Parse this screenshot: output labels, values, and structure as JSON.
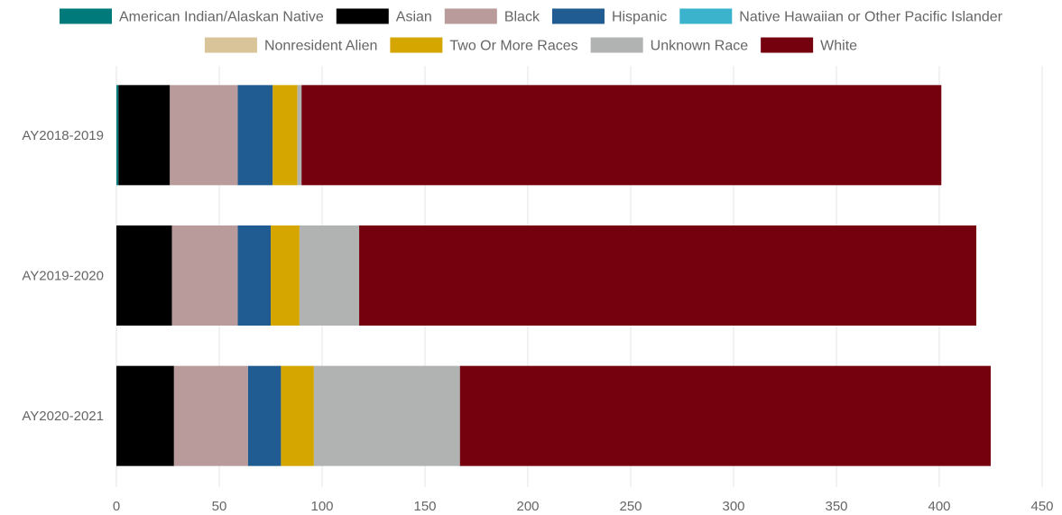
{
  "chart_data": {
    "type": "bar",
    "orientation": "horizontal",
    "stacked": true,
    "categories": [
      "AY2018-2019",
      "AY2019-2020",
      "AY2020-2021"
    ],
    "series": [
      {
        "name": "American Indian/Alaskan Native",
        "color": "#007a7a",
        "values": [
          1,
          0,
          0
        ]
      },
      {
        "name": "Asian",
        "color": "#000000",
        "values": [
          25,
          27,
          28
        ]
      },
      {
        "name": "Black",
        "color": "#b99b9b",
        "values": [
          33,
          32,
          36
        ]
      },
      {
        "name": "Hispanic",
        "color": "#205b91",
        "values": [
          17,
          16,
          16
        ]
      },
      {
        "name": "Native Hawaiian or Other Pacific Islander",
        "color": "#3bb3cc",
        "values": [
          0,
          0,
          0
        ]
      },
      {
        "name": "Nonresident Alien",
        "color": "#d9c49a",
        "values": [
          0,
          0,
          0
        ]
      },
      {
        "name": "Two Or More Races",
        "color": "#d6a600",
        "values": [
          12,
          14,
          16
        ]
      },
      {
        "name": "Unknown Race",
        "color": "#b1b3b2",
        "values": [
          2,
          29,
          71
        ]
      },
      {
        "name": "White",
        "color": "#75000e",
        "values": [
          311,
          300,
          258
        ]
      }
    ],
    "xlim": [
      0,
      450
    ],
    "xticks": [
      "0",
      "50",
      "100",
      "150",
      "200",
      "250",
      "300",
      "350",
      "400",
      "450"
    ],
    "grid": true,
    "legend_position": "top"
  }
}
